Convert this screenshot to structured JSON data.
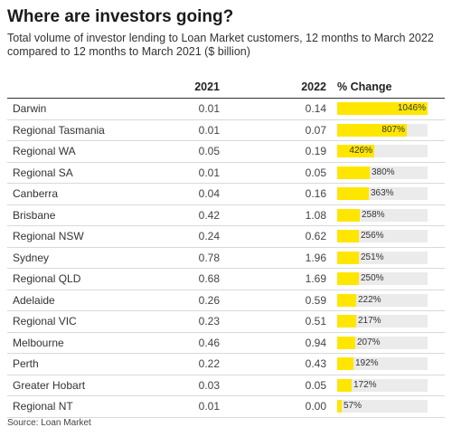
{
  "title": "Where are investors going?",
  "subtitle": "Total volume of investor lending to Loan Market customers, 12 months to March 2022 compared to 12 months to March 2021 ($ billion)",
  "source": "Source: Loan Market",
  "colors": {
    "bar": "#ffe600",
    "track": "#ebebeb"
  },
  "chart_data": {
    "type": "table",
    "columns": [
      "",
      "2021",
      "2022",
      "% Change"
    ],
    "bar_max_pct": 1046,
    "rows": [
      {
        "region": "Darwin",
        "v2021": "0.01",
        "v2022": "0.14",
        "pct_label": "1046%",
        "pct": 1046
      },
      {
        "region": "Regional Tasmania",
        "v2021": "0.01",
        "v2022": "0.07",
        "pct_label": "807%",
        "pct": 807
      },
      {
        "region": "Regional WA",
        "v2021": "0.05",
        "v2022": "0.19",
        "pct_label": "426%",
        "pct": 426
      },
      {
        "region": "Regional SA",
        "v2021": "0.01",
        "v2022": "0.05",
        "pct_label": "380%",
        "pct": 380
      },
      {
        "region": "Canberra",
        "v2021": "0.04",
        "v2022": "0.16",
        "pct_label": "363%",
        "pct": 363
      },
      {
        "region": "Brisbane",
        "v2021": "0.42",
        "v2022": "1.08",
        "pct_label": "258%",
        "pct": 258
      },
      {
        "region": "Regional NSW",
        "v2021": "0.24",
        "v2022": "0.62",
        "pct_label": "256%",
        "pct": 256
      },
      {
        "region": "Sydney",
        "v2021": "0.78",
        "v2022": "1.96",
        "pct_label": "251%",
        "pct": 251
      },
      {
        "region": "Regional QLD",
        "v2021": "0.68",
        "v2022": "1.69",
        "pct_label": "250%",
        "pct": 250
      },
      {
        "region": "Adelaide",
        "v2021": "0.26",
        "v2022": "0.59",
        "pct_label": "222%",
        "pct": 222
      },
      {
        "region": "Regional VIC",
        "v2021": "0.23",
        "v2022": "0.51",
        "pct_label": "217%",
        "pct": 217
      },
      {
        "region": "Melbourne",
        "v2021": "0.46",
        "v2022": "0.94",
        "pct_label": "207%",
        "pct": 207
      },
      {
        "region": "Perth",
        "v2021": "0.22",
        "v2022": "0.43",
        "pct_label": "192%",
        "pct": 192
      },
      {
        "region": "Greater Hobart",
        "v2021": "0.03",
        "v2022": "0.05",
        "pct_label": "172%",
        "pct": 172
      },
      {
        "region": "Regional NT",
        "v2021": "0.01",
        "v2022": "0.00",
        "pct_label": "57%",
        "pct": 57
      }
    ]
  }
}
